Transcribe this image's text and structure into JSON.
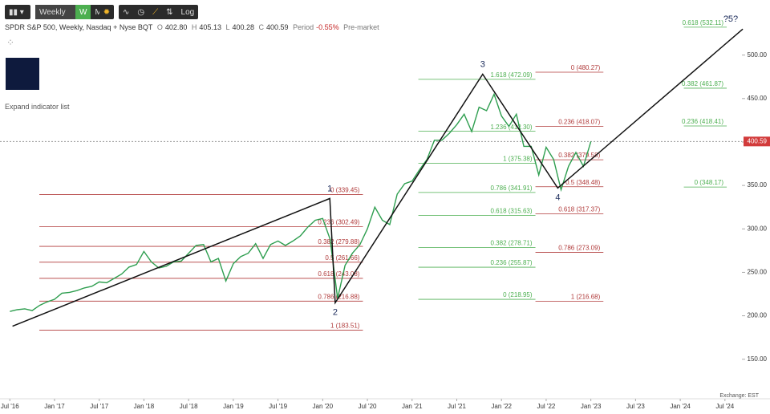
{
  "toolbar": {
    "interval": "Weekly",
    "week": "W",
    "month": "M",
    "log": "Log"
  },
  "header": {
    "symbol": "SPDR S&P 500, Weekly, Nasdaq + Nyse BQT",
    "open_label": "O",
    "open": "402.80",
    "high_label": "H",
    "high": "405.13",
    "low_label": "L",
    "low": "400.28",
    "close_label": "C",
    "close": "400.59",
    "period_label": "Period",
    "period": "-0.55%",
    "session": "Pre-market"
  },
  "expand": "Expand indicator list",
  "exchange": "Exchange: EST",
  "chart_data": {
    "type": "line",
    "color": "#2e9e4f",
    "x": [
      2016.5,
      2016.583,
      2016.667,
      2016.75,
      2016.833,
      2016.917,
      2017,
      2017.083,
      2017.167,
      2017.25,
      2017.333,
      2017.417,
      2017.5,
      2017.583,
      2017.667,
      2017.75,
      2017.833,
      2017.917,
      2018,
      2018.083,
      2018.167,
      2018.25,
      2018.333,
      2018.417,
      2018.5,
      2018.583,
      2018.667,
      2018.75,
      2018.833,
      2018.917,
      2019,
      2019.083,
      2019.167,
      2019.25,
      2019.333,
      2019.417,
      2019.5,
      2019.583,
      2019.667,
      2019.75,
      2019.833,
      2019.917,
      2020,
      2020.083,
      2020.167,
      2020.25,
      2020.333,
      2020.417,
      2020.5,
      2020.583,
      2020.667,
      2020.75,
      2020.833,
      2020.917,
      2021,
      2021.083,
      2021.167,
      2021.25,
      2021.333,
      2021.417,
      2021.5,
      2021.583,
      2021.667,
      2021.75,
      2021.833,
      2021.917,
      2022,
      2022.083,
      2022.167,
      2022.25,
      2022.333,
      2022.417,
      2022.5,
      2022.583,
      2022.667,
      2022.75,
      2022.833,
      2022.917,
      2023
    ],
    "values": [
      205,
      207,
      208,
      206,
      212,
      216,
      219,
      226,
      227,
      229,
      232,
      234,
      239,
      238,
      243,
      248,
      256,
      259,
      274,
      262,
      255,
      257,
      262,
      263,
      272,
      281,
      282,
      262,
      266,
      240,
      260,
      268,
      272,
      283,
      266,
      282,
      286,
      281,
      286,
      292,
      302,
      310,
      312,
      288,
      220,
      258,
      272,
      282,
      300,
      325,
      310,
      305,
      340,
      352,
      355,
      368,
      380,
      402,
      402,
      410,
      420,
      432,
      412,
      440,
      436,
      455,
      430,
      418,
      432,
      395,
      395,
      362,
      394,
      380,
      345,
      372,
      388,
      372,
      400.59
    ],
    "last_price": {
      "value": 400.59,
      "label": "400.59"
    },
    "xlim": [
      2016.39,
      2024.69
    ],
    "ylim": [
      111,
      556
    ],
    "xticks": [
      {
        "value": 2016.5,
        "label": "Jul '16"
      },
      {
        "value": 2017,
        "label": "Jan '17"
      },
      {
        "value": 2017.5,
        "label": "Jul '17"
      },
      {
        "value": 2018,
        "label": "Jan '18"
      },
      {
        "value": 2018.5,
        "label": "Jul '18"
      },
      {
        "value": 2019,
        "label": "Jan '19"
      },
      {
        "value": 2019.5,
        "label": "Jul '19"
      },
      {
        "value": 2020,
        "label": "Jan '20"
      },
      {
        "value": 2020.5,
        "label": "Jul '20"
      },
      {
        "value": 2021,
        "label": "Jan '21"
      },
      {
        "value": 2021.5,
        "label": "Jul '21"
      },
      {
        "value": 2022,
        "label": "Jan '22"
      },
      {
        "value": 2022.5,
        "label": "Jul '22"
      },
      {
        "value": 2023,
        "label": "Jan '23"
      },
      {
        "value": 2023.5,
        "label": "Jul '23"
      },
      {
        "value": 2024,
        "label": "Jan '24"
      },
      {
        "value": 2024.5,
        "label": "Jul '24"
      }
    ],
    "yticks": [
      {
        "value": 150,
        "label": "150.00"
      },
      {
        "value": 200,
        "label": "200.00"
      },
      {
        "value": 250,
        "label": "250.00"
      },
      {
        "value": 300,
        "label": "300.00"
      },
      {
        "value": 350,
        "label": "350.00"
      },
      {
        "value": 400,
        "label": "400.00"
      },
      {
        "value": 450,
        "label": "450.00"
      },
      {
        "value": 500,
        "label": "500.00"
      }
    ],
    "fib_sets": [
      {
        "color": "#b03a3a",
        "x": [
          2016.83,
          2020.45
        ],
        "levels": [
          {
            "label": "0 (339.45)",
            "value": 339.45
          },
          {
            "label": "0.236 (302.49)",
            "value": 302.49
          },
          {
            "label": "0.382 (279.88)",
            "value": 279.88
          },
          {
            "label": "0.5 (261.66)",
            "value": 261.66
          },
          {
            "label": "0.618 (243.08)",
            "value": 243.08
          },
          {
            "label": "0.786 (216.88)",
            "value": 216.88
          },
          {
            "label": "1 (183.51)",
            "value": 183.51
          }
        ]
      },
      {
        "color": "#4caf50",
        "x": [
          2021.07,
          2022.38
        ],
        "levels": [
          {
            "label": "1.618 (472.09)",
            "value": 472.09
          },
          {
            "label": "1.236 (412.30)",
            "value": 412.3
          },
          {
            "label": "1 (375.38)",
            "value": 375.38
          },
          {
            "label": "0.786 (341.91)",
            "value": 341.91
          },
          {
            "label": "0.618 (315.63)",
            "value": 315.63
          },
          {
            "label": "0.382 (278.71)",
            "value": 278.71
          },
          {
            "label": "0.236 (255.87)",
            "value": 255.87
          },
          {
            "label": "0 (218.95)",
            "value": 218.95
          }
        ]
      },
      {
        "color": "#b03a3a",
        "x": [
          2022.38,
          2023.14
        ],
        "levels": [
          {
            "label": "0 (480.27)",
            "value": 480.27
          },
          {
            "label": "0.236 (418.07)",
            "value": 418.07
          },
          {
            "label": "0.382 (379.58)",
            "value": 379.58
          },
          {
            "label": "0.5 (348.48)",
            "value": 348.48
          },
          {
            "label": "0.618 (317.37)",
            "value": 317.37
          },
          {
            "label": "0.786 (273.09)",
            "value": 273.09
          },
          {
            "label": "1 (216.68)",
            "value": 216.68
          }
        ]
      },
      {
        "color": "#4caf50",
        "x": [
          2024.04,
          2024.52
        ],
        "levels": [
          {
            "label": "0.618 (532.11)",
            "value": 532.11
          },
          {
            "label": "0.382 (461.87)",
            "value": 461.87
          },
          {
            "label": "0.236 (418.41)",
            "value": 418.41
          },
          {
            "label": "0 (348.17)",
            "value": 348.17
          }
        ]
      }
    ],
    "waves": [
      {
        "x": 2016.53,
        "y": 188
      },
      {
        "x": 2020.08,
        "y": 335,
        "label": "1"
      },
      {
        "x": 2020.14,
        "y": 215,
        "label": "2"
      },
      {
        "x": 2021.79,
        "y": 478,
        "label": "3"
      },
      {
        "x": 2022.63,
        "y": 347,
        "label": "4"
      },
      {
        "x": 2024.7,
        "y": 530,
        "label": "?5?"
      }
    ]
  }
}
